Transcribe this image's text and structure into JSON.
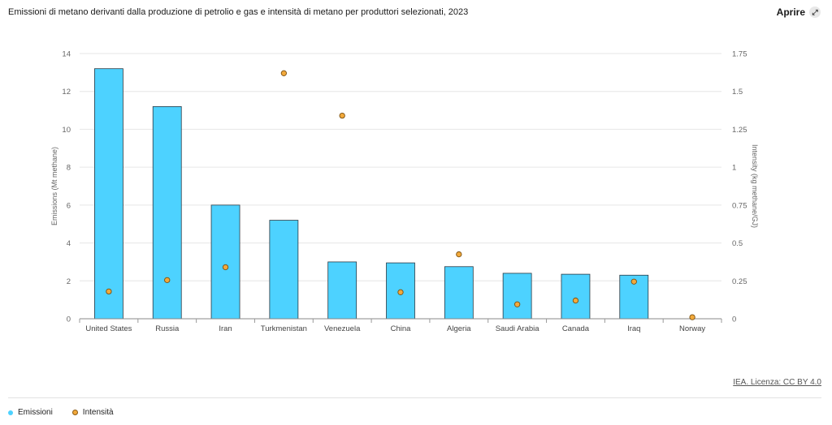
{
  "header": {
    "title": "Emissioni di metano derivanti dalla produzione di petrolio e gas e intensità di metano per produttori selezionati, 2023",
    "open_label": "Aprire",
    "open_icon": "expand-icon"
  },
  "source_label": "IEA. Licenza: CC BY 4.0",
  "legend": [
    {
      "label": "Emissioni",
      "color": "#4dd2ff"
    },
    {
      "label": "Intensità",
      "color": "#f2a93b"
    }
  ],
  "chart_data": {
    "type": "bar",
    "categories": [
      "United States",
      "Russia",
      "Iran",
      "Turkmenistan",
      "Venezuela",
      "China",
      "Algeria",
      "Saudi Arabia",
      "Canada",
      "Iraq",
      "Norway"
    ],
    "series": [
      {
        "name": "Emissioni",
        "kind": "bar",
        "axis": "left",
        "color": "#4dd2ff",
        "values": [
          13.2,
          11.2,
          6.0,
          5.2,
          3.0,
          2.95,
          2.75,
          2.4,
          2.35,
          2.3,
          0.0
        ]
      },
      {
        "name": "Intensità",
        "kind": "scatter",
        "axis": "right",
        "color": "#f2a93b",
        "values": [
          0.18,
          0.255,
          0.34,
          1.62,
          1.34,
          0.175,
          0.425,
          0.095,
          0.12,
          0.245,
          0.01
        ]
      }
    ],
    "ylabel": "Emissions (Mt methane)",
    "ylabel_right": "Intensity (kg methane/GJ)",
    "ylim": [
      0,
      14
    ],
    "yticks": [
      0,
      2,
      4,
      6,
      8,
      10,
      12,
      14
    ],
    "ylim_right": [
      0,
      1.75
    ],
    "yticks_right": [
      "0",
      "0.25",
      "0.5",
      "0.75",
      "1",
      "1.25",
      "1.5",
      "1.75"
    ],
    "grid": true,
    "legend_position": "bottom-left"
  }
}
